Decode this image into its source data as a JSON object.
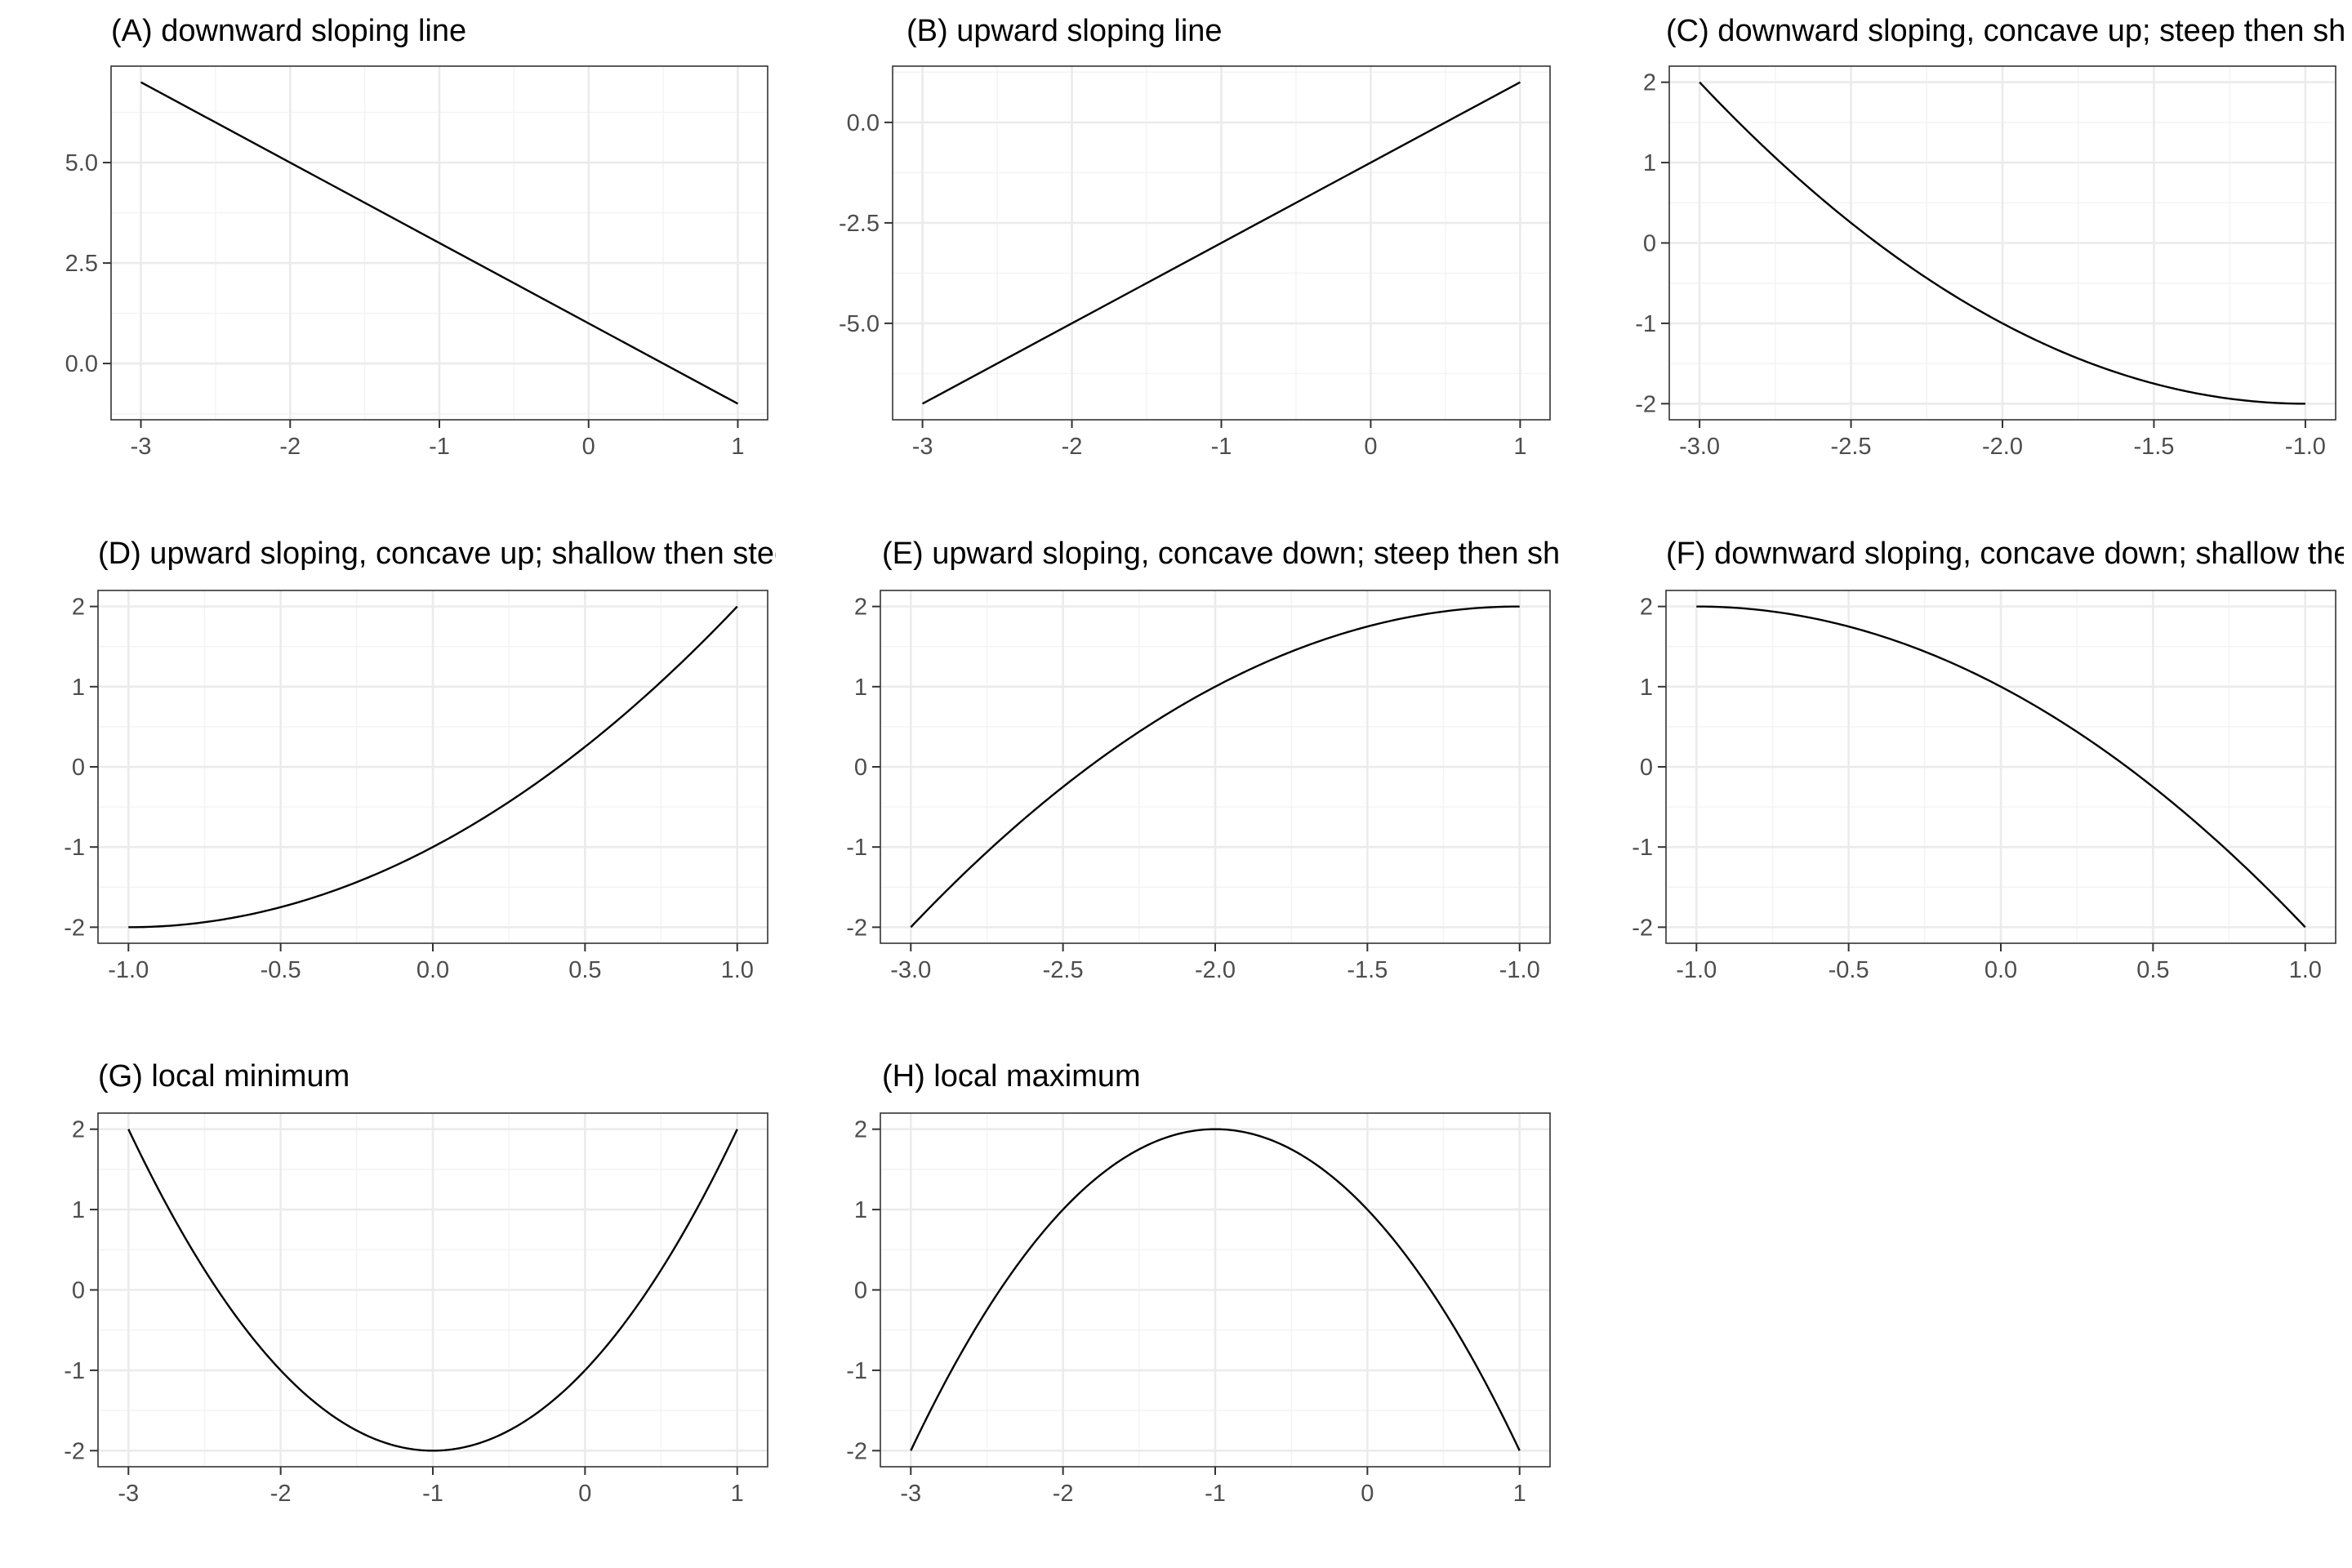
{
  "chart_data": [
    {
      "type": "line",
      "title": "(A) downward sloping line",
      "x": [
        -3,
        1
      ],
      "y": [
        7,
        -1
      ],
      "xlim": [
        -3.2,
        1.2
      ],
      "ylim": [
        -1.4,
        7.4
      ],
      "xticks": [
        -3,
        -2,
        -1,
        0,
        1
      ],
      "xtick_labels": [
        "-3",
        "-2",
        "-1",
        "0",
        "1"
      ],
      "yticks": [
        0,
        2.5,
        5
      ],
      "ytick_labels": [
        "0.0",
        "2.5",
        "5.0"
      ],
      "grid": true
    },
    {
      "type": "line",
      "title": "(B) upward sloping line",
      "x": [
        -3,
        1
      ],
      "y": [
        -7,
        1
      ],
      "xlim": [
        -3.2,
        1.2
      ],
      "ylim": [
        -7.4,
        1.4
      ],
      "xticks": [
        -3,
        -2,
        -1,
        0,
        1
      ],
      "xtick_labels": [
        "-3",
        "-2",
        "-1",
        "0",
        "1"
      ],
      "yticks": [
        -5,
        -2.5,
        0
      ],
      "ytick_labels": [
        "-5.0",
        "-2.5",
        "0.0"
      ],
      "grid": true
    },
    {
      "type": "line",
      "title": "(C) downward sloping, concave up; steep then shallow",
      "x": [
        -3.0,
        -2.8,
        -2.6,
        -2.4,
        -2.2,
        -2.0,
        -1.8,
        -1.6,
        -1.4,
        -1.2,
        -1.0
      ],
      "y": [
        2.0,
        1.24,
        0.56,
        -0.04,
        -0.56,
        -1.0,
        -1.36,
        -1.64,
        -1.84,
        -1.96,
        -2.0
      ],
      "xlim": [
        -3.1,
        -0.9
      ],
      "ylim": [
        -2.2,
        2.2
      ],
      "xticks": [
        -3,
        -2.5,
        -2,
        -1.5,
        -1
      ],
      "xtick_labels": [
        "-3.0",
        "-2.5",
        "-2.0",
        "-1.5",
        "-1.0"
      ],
      "yticks": [
        -2,
        -1,
        0,
        1,
        2
      ],
      "ytick_labels": [
        "-2",
        "-1",
        "0",
        "1",
        "2"
      ],
      "grid": true
    },
    {
      "type": "line",
      "title": "(D) upward sloping, concave up; shallow then steep",
      "x": [
        -1.0,
        -0.8,
        -0.6,
        -0.4,
        -0.2,
        0.0,
        0.2,
        0.4,
        0.6,
        0.8,
        1.0
      ],
      "y": [
        -2.0,
        -1.96,
        -1.84,
        -1.64,
        -1.36,
        -1.0,
        -0.56,
        -0.04,
        0.56,
        1.24,
        2.0
      ],
      "xlim": [
        -1.1,
        1.1
      ],
      "ylim": [
        -2.2,
        2.2
      ],
      "xticks": [
        -1,
        -0.5,
        0,
        0.5,
        1
      ],
      "xtick_labels": [
        "-1.0",
        "-0.5",
        "0.0",
        "0.5",
        "1.0"
      ],
      "yticks": [
        -2,
        -1,
        0,
        1,
        2
      ],
      "ytick_labels": [
        "-2",
        "-1",
        "0",
        "1",
        "2"
      ],
      "grid": true
    },
    {
      "type": "line",
      "title": "(E) upward sloping, concave down; steep then shallow",
      "x": [
        -3.0,
        -2.8,
        -2.6,
        -2.4,
        -2.2,
        -2.0,
        -1.8,
        -1.6,
        -1.4,
        -1.2,
        -1.0
      ],
      "y": [
        -2.0,
        -1.24,
        -0.56,
        0.04,
        0.56,
        1.0,
        1.36,
        1.64,
        1.84,
        1.96,
        2.0
      ],
      "xlim": [
        -3.1,
        -0.9
      ],
      "ylim": [
        -2.2,
        2.2
      ],
      "xticks": [
        -3,
        -2.5,
        -2,
        -1.5,
        -1
      ],
      "xtick_labels": [
        "-3.0",
        "-2.5",
        "-2.0",
        "-1.5",
        "-1.0"
      ],
      "yticks": [
        -2,
        -1,
        0,
        1,
        2
      ],
      "ytick_labels": [
        "-2",
        "-1",
        "0",
        "1",
        "2"
      ],
      "grid": true
    },
    {
      "type": "line",
      "title": "(F) downward sloping, concave down; shallow then steep",
      "x": [
        -1.0,
        -0.8,
        -0.6,
        -0.4,
        -0.2,
        0.0,
        0.2,
        0.4,
        0.6,
        0.8,
        1.0
      ],
      "y": [
        2.0,
        1.96,
        1.84,
        1.64,
        1.36,
        1.0,
        0.56,
        0.04,
        -0.56,
        -1.24,
        -2.0
      ],
      "xlim": [
        -1.1,
        1.1
      ],
      "ylim": [
        -2.2,
        2.2
      ],
      "xticks": [
        -1,
        -0.5,
        0,
        0.5,
        1
      ],
      "xtick_labels": [
        "-1.0",
        "-0.5",
        "0.0",
        "0.5",
        "1.0"
      ],
      "yticks": [
        -2,
        -1,
        0,
        1,
        2
      ],
      "ytick_labels": [
        "-2",
        "-1",
        "0",
        "1",
        "2"
      ],
      "grid": true
    },
    {
      "type": "line",
      "title": "(G) local minimum",
      "x": [
        -3.0,
        -2.6,
        -2.2,
        -1.8,
        -1.4,
        -1.0,
        -0.6,
        -0.2,
        0.2,
        0.6,
        1.0
      ],
      "y": [
        2.0,
        0.56,
        -0.56,
        -1.36,
        -1.84,
        -2.0,
        -1.84,
        -1.36,
        -0.56,
        0.56,
        2.0
      ],
      "xlim": [
        -3.2,
        1.2
      ],
      "ylim": [
        -2.2,
        2.2
      ],
      "xticks": [
        -3,
        -2,
        -1,
        0,
        1
      ],
      "xtick_labels": [
        "-3",
        "-2",
        "-1",
        "0",
        "1"
      ],
      "yticks": [
        -2,
        -1,
        0,
        1,
        2
      ],
      "ytick_labels": [
        "-2",
        "-1",
        "0",
        "1",
        "2"
      ],
      "grid": true
    },
    {
      "type": "line",
      "title": "(H) local maximum",
      "x": [
        -3.0,
        -2.6,
        -2.2,
        -1.8,
        -1.4,
        -1.0,
        -0.6,
        -0.2,
        0.2,
        0.6,
        1.0
      ],
      "y": [
        -2.0,
        -0.56,
        0.56,
        1.36,
        1.84,
        2.0,
        1.84,
        1.36,
        0.56,
        -0.56,
        -2.0
      ],
      "xlim": [
        -3.2,
        1.2
      ],
      "ylim": [
        -2.2,
        2.2
      ],
      "xticks": [
        -3,
        -2,
        -1,
        0,
        1
      ],
      "xtick_labels": [
        "-3",
        "-2",
        "-1",
        "0",
        "1"
      ],
      "yticks": [
        -2,
        -1,
        0,
        1,
        2
      ],
      "ytick_labels": [
        "-2",
        "-1",
        "0",
        "1",
        "2"
      ],
      "grid": true
    }
  ]
}
